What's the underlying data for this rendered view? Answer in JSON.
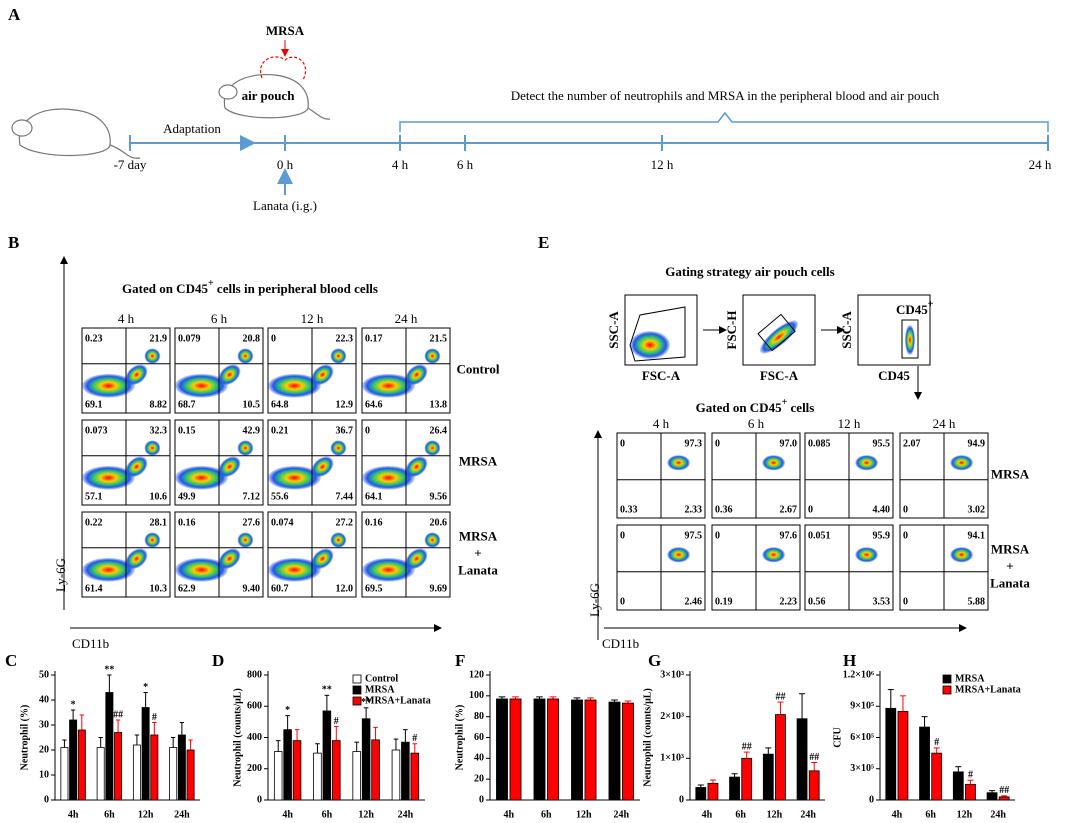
{
  "figure": {
    "timeline": {
      "panel": "A",
      "mrsa": "MRSA",
      "pouch": "air pouch",
      "adaptation": "Adaptation",
      "lanata": "Lanata (i.g.)",
      "detect": "Detect the number of neutrophils and MRSA in the peripheral blood and air pouch",
      "points": [
        "-7 day",
        "0 h",
        "4 h",
        "6 h",
        "12 h",
        "24 h"
      ]
    },
    "flow_b": {
      "panel": "B",
      "title": [
        "Gated on CD45",
        "+",
        " cells in peripheral blood cells"
      ],
      "times": [
        "4 h",
        "6 h",
        "12 h",
        "24 h"
      ],
      "y_axis": "Ly-6G",
      "x_axis": "CD11b",
      "groups": [
        {
          "label": [
            "Control"
          ],
          "quadrants": [
            [
              "0.23",
              "21.9",
              "69.1",
              "8.82"
            ],
            [
              "0.079",
              "20.8",
              "68.7",
              "10.5"
            ],
            [
              "0",
              "22.3",
              "64.8",
              "12.9"
            ],
            [
              "0.17",
              "21.5",
              "64.6",
              "13.8"
            ]
          ]
        },
        {
          "label": [
            "MRSA"
          ],
          "quadrants": [
            [
              "0.073",
              "32.3",
              "57.1",
              "10.6"
            ],
            [
              "0.15",
              "42.9",
              "49.9",
              "7.12"
            ],
            [
              "0.21",
              "36.7",
              "55.6",
              "7.44"
            ],
            [
              "0",
              "26.4",
              "64.1",
              "9.56"
            ]
          ]
        },
        {
          "label": [
            "MRSA",
            "+",
            "Lanata"
          ],
          "quadrants": [
            [
              "0.22",
              "28.1",
              "61.4",
              "10.3"
            ],
            [
              "0.16",
              "27.6",
              "62.9",
              "9.40"
            ],
            [
              "0.074",
              "27.2",
              "60.7",
              "12.0"
            ],
            [
              "0.16",
              "20.6",
              "69.5",
              "9.69"
            ]
          ]
        }
      ]
    },
    "flow_e": {
      "panel": "E",
      "title": "Gating strategy air pouch cells",
      "gating": [
        {
          "y": "SSC-A",
          "x": "FSC-A"
        },
        {
          "y": "FSC-H",
          "x": "FSC-A"
        },
        {
          "y": "SSC-A",
          "x": "CD45",
          "gate": [
            "CD45",
            "+"
          ]
        }
      ],
      "subtitle": [
        "Gated on CD45",
        "+",
        " cells"
      ],
      "times": [
        "4 h",
        "6 h",
        "12 h",
        "24 h"
      ],
      "y_axis": "Ly-6G",
      "x_axis": "CD11b",
      "groups": [
        {
          "label": [
            "MRSA"
          ],
          "quadrants": [
            [
              "0",
              "97.3",
              "0.33",
              "2.33"
            ],
            [
              "0",
              "97.0",
              "0.36",
              "2.67"
            ],
            [
              "0.085",
              "95.5",
              "0",
              "4.40"
            ],
            [
              "2.07",
              "94.9",
              "0",
              "3.02"
            ]
          ]
        },
        {
          "label": [
            "MRSA",
            "+",
            "Lanata"
          ],
          "quadrants": [
            [
              "0",
              "97.5",
              "0",
              "2.46"
            ],
            [
              "0",
              "97.6",
              "0.19",
              "2.23"
            ],
            [
              "0.051",
              "95.9",
              "0.56",
              "3.53"
            ],
            [
              "0",
              "94.1",
              "0",
              "5.88"
            ]
          ]
        }
      ]
    }
  },
  "chart_data": [
    {
      "type": "bar",
      "panel": "C",
      "ylabel": "Neutrophil (%)",
      "categories": [
        "4h",
        "6h",
        "12h",
        "24h"
      ],
      "ylim": [
        0,
        50
      ],
      "yticks": [
        0,
        10,
        20,
        30,
        40,
        50
      ],
      "series": [
        {
          "name": "Control",
          "color": "#ffffff",
          "values": [
            21,
            21,
            22,
            21
          ],
          "errors": [
            3,
            4,
            4,
            4
          ],
          "annotations": [
            null,
            null,
            null,
            null
          ]
        },
        {
          "name": "MRSA",
          "color": "#000000",
          "values": [
            32,
            43,
            37,
            26
          ],
          "errors": [
            4,
            7,
            6,
            5
          ],
          "annotations": [
            "*",
            "**",
            "*",
            null
          ]
        },
        {
          "name": "MRSA+Lanata",
          "color": "#ff0000",
          "values": [
            28,
            27,
            26,
            20
          ],
          "errors": [
            6,
            5,
            5,
            4
          ],
          "annotations": [
            null,
            "##",
            "#",
            null
          ]
        }
      ]
    },
    {
      "type": "bar",
      "panel": "D",
      "ylabel": "Neutrophil (counts/μL)",
      "categories": [
        "4h",
        "6h",
        "12h",
        "24h"
      ],
      "ylim": [
        0,
        800
      ],
      "yticks": [
        0,
        200,
        400,
        600,
        800
      ],
      "legend": "upper right",
      "series": [
        {
          "name": "Control",
          "color": "#ffffff",
          "values": [
            310,
            300,
            310,
            320
          ],
          "errors": [
            70,
            60,
            60,
            70
          ],
          "annotations": [
            null,
            null,
            null,
            null
          ]
        },
        {
          "name": "MRSA",
          "color": "#000000",
          "values": [
            450,
            570,
            520,
            370
          ],
          "errors": [
            90,
            100,
            70,
            80
          ],
          "annotations": [
            "*",
            "**",
            "**",
            null
          ]
        },
        {
          "name": "MRSA+Lanata",
          "color": "#ff0000",
          "values": [
            380,
            380,
            385,
            300
          ],
          "errors": [
            70,
            90,
            80,
            60
          ],
          "annotations": [
            null,
            "#",
            null,
            "#"
          ]
        }
      ]
    },
    {
      "type": "bar",
      "panel": "F",
      "ylabel": "Neutrophil (%)",
      "categories": [
        "4h",
        "6h",
        "12h",
        "24h"
      ],
      "ylim": [
        0,
        120
      ],
      "yticks": [
        0,
        20,
        40,
        60,
        80,
        100,
        120
      ],
      "series": [
        {
          "name": "MRSA",
          "color": "#000000",
          "values": [
            97,
            97,
            96,
            94
          ],
          "errors": [
            2,
            2,
            2,
            2
          ],
          "annotations": [
            null,
            null,
            null,
            null
          ]
        },
        {
          "name": "MRSA+Lanata",
          "color": "#ff0000",
          "values": [
            97,
            97,
            96,
            93
          ],
          "errors": [
            2,
            2,
            2,
            2
          ],
          "annotations": [
            null,
            null,
            null,
            null
          ]
        }
      ]
    },
    {
      "type": "bar",
      "panel": "G",
      "ylabel": "Neutrophil (counts/μL)",
      "categories": [
        "4h",
        "6h",
        "12h",
        "24h"
      ],
      "ylim": [
        0,
        3000
      ],
      "yticks": [
        0,
        {
          "value": 1000,
          "label": "1×10³"
        },
        {
          "value": 2000,
          "label": "2×10³"
        },
        {
          "value": 3000,
          "label": "3×10³"
        }
      ],
      "series": [
        {
          "name": "MRSA",
          "color": "#000000",
          "values": [
            300,
            550,
            1100,
            1950
          ],
          "errors": [
            60,
            80,
            150,
            600
          ],
          "annotations": [
            null,
            null,
            null,
            null
          ]
        },
        {
          "name": "MRSA+Lanata",
          "color": "#ff0000",
          "values": [
            400,
            1000,
            2050,
            700
          ],
          "errors": [
            80,
            150,
            300,
            200
          ],
          "annotations": [
            null,
            "##",
            "##",
            "##"
          ]
        }
      ]
    },
    {
      "type": "bar",
      "panel": "H",
      "ylabel": "CFU",
      "categories": [
        "4h",
        "6h",
        "12h",
        "24h"
      ],
      "ylim": [
        0,
        1200000
      ],
      "yticks": [
        0,
        {
          "value": 300000,
          "label": "3×10⁵"
        },
        {
          "value": 600000,
          "label": "6×10⁵"
        },
        {
          "value": 900000,
          "label": "9×10⁵"
        },
        {
          "value": 1200000,
          "label": "1.2×10⁶"
        }
      ],
      "legend": "upper right",
      "series": [
        {
          "name": "MRSA",
          "color": "#000000",
          "values": [
            880000,
            700000,
            270000,
            70000
          ],
          "errors": [
            180000,
            100000,
            50000,
            20000
          ],
          "annotations": [
            null,
            null,
            null,
            null
          ]
        },
        {
          "name": "MRSA+Lanata",
          "color": "#ff0000",
          "values": [
            850000,
            450000,
            150000,
            30000
          ],
          "errors": [
            150000,
            50000,
            40000,
            10000
          ],
          "annotations": [
            null,
            "#",
            "#",
            "##"
          ]
        }
      ]
    }
  ]
}
